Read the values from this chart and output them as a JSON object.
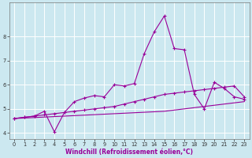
{
  "xlabel": "Windchill (Refroidissement éolien,°C)",
  "background_color": "#cce8f0",
  "grid_color": "#ffffff",
  "line_color": "#990099",
  "x_values": [
    0,
    1,
    2,
    3,
    4,
    5,
    6,
    7,
    8,
    9,
    10,
    11,
    12,
    13,
    14,
    15,
    16,
    17,
    18,
    19,
    20,
    21,
    22,
    23
  ],
  "series1": [
    4.6,
    4.65,
    4.7,
    4.9,
    4.05,
    4.85,
    5.3,
    5.45,
    5.55,
    5.5,
    6.0,
    5.95,
    6.05,
    7.3,
    8.2,
    8.85,
    7.5,
    7.45,
    5.6,
    5.0,
    6.1,
    5.85,
    5.5,
    5.4
  ],
  "series2": [
    4.6,
    4.65,
    4.7,
    4.75,
    4.8,
    4.85,
    4.9,
    4.95,
    5.0,
    5.05,
    5.1,
    5.2,
    5.3,
    5.4,
    5.5,
    5.6,
    5.65,
    5.7,
    5.75,
    5.8,
    5.85,
    5.9,
    5.95,
    5.5
  ],
  "series3": [
    4.6,
    4.62,
    4.64,
    4.66,
    4.68,
    4.7,
    4.72,
    4.74,
    4.76,
    4.78,
    4.8,
    4.82,
    4.84,
    4.86,
    4.88,
    4.9,
    4.95,
    5.0,
    5.05,
    5.1,
    5.15,
    5.2,
    5.25,
    5.3
  ],
  "ylim": [
    3.75,
    9.4
  ],
  "xlim": [
    -0.5,
    23.5
  ],
  "yticks": [
    4,
    5,
    6,
    7,
    8
  ],
  "xticks": [
    0,
    1,
    2,
    3,
    4,
    5,
    6,
    7,
    8,
    9,
    10,
    11,
    12,
    13,
    14,
    15,
    16,
    17,
    18,
    19,
    20,
    21,
    22,
    23
  ],
  "xlabel_fontsize": 5.5,
  "tick_fontsize": 4.8,
  "linewidth": 0.8,
  "marker_size": 3.0
}
